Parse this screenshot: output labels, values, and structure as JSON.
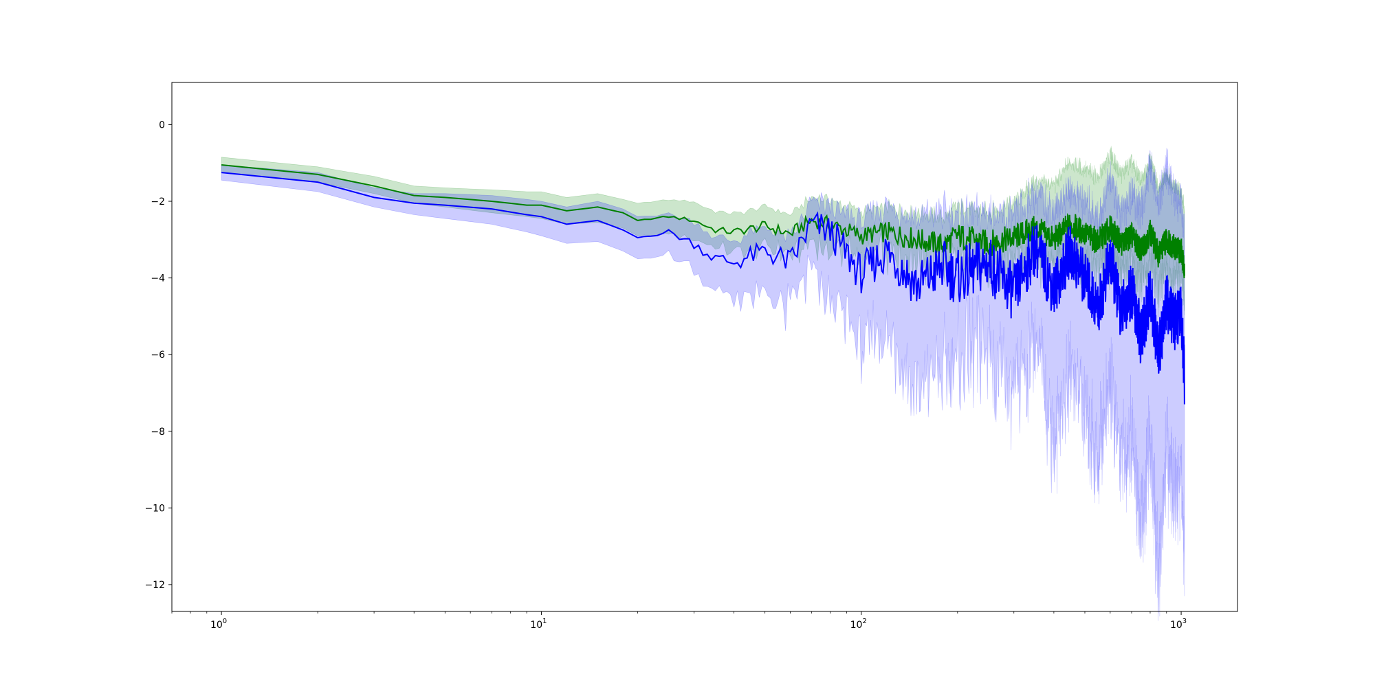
{
  "chart_data": {
    "type": "line",
    "title": "",
    "xlabel": "",
    "ylabel": "",
    "xscale": "log",
    "xlim": [
      0.7,
      1500
    ],
    "ylim": [
      -12.7,
      1.1
    ],
    "grid": false,
    "x_ticks": [
      {
        "value": 1,
        "base": "10",
        "exp": "0"
      },
      {
        "value": 10,
        "base": "10",
        "exp": "1"
      },
      {
        "value": 100,
        "base": "10",
        "exp": "2"
      },
      {
        "value": 1000,
        "base": "10",
        "exp": "3"
      }
    ],
    "y_ticks": [
      {
        "value": 0,
        "label": "0"
      },
      {
        "value": -2,
        "label": "−2"
      },
      {
        "value": -4,
        "label": "−4"
      },
      {
        "value": -6,
        "label": "−6"
      },
      {
        "value": -8,
        "label": "−8"
      },
      {
        "value": -10,
        "label": "−10"
      },
      {
        "value": -12,
        "label": "−12"
      }
    ],
    "series": [
      {
        "color": "#008000",
        "band_color": "#008000",
        "band_opacity": 0.2,
        "x": [
          1,
          2,
          3,
          4,
          5,
          7,
          9,
          10,
          12,
          15,
          18,
          20,
          25,
          30,
          35,
          40,
          50,
          60,
          70,
          80,
          100,
          120,
          150,
          180,
          200,
          250,
          300,
          350,
          400,
          450,
          500,
          550,
          600,
          650,
          700,
          750,
          800,
          850,
          900,
          950,
          1000,
          1024
        ],
        "y": [
          -1.05,
          -1.3,
          -1.6,
          -1.85,
          -1.9,
          -2.0,
          -2.1,
          -2.1,
          -2.25,
          -2.15,
          -2.3,
          -2.5,
          -2.4,
          -2.5,
          -2.75,
          -2.8,
          -2.65,
          -2.85,
          -2.5,
          -2.6,
          -2.9,
          -2.8,
          -3.0,
          -3.15,
          -2.9,
          -3.1,
          -2.95,
          -2.7,
          -3.0,
          -2.6,
          -2.85,
          -3.05,
          -2.7,
          -3.1,
          -2.9,
          -3.3,
          -2.8,
          -3.4,
          -3.0,
          -3.2,
          -3.3,
          -3.7
        ],
        "lower": [
          -1.25,
          -1.5,
          -1.8,
          -2.05,
          -2.15,
          -2.3,
          -2.4,
          -2.45,
          -2.6,
          -2.55,
          -2.7,
          -2.9,
          -2.85,
          -2.95,
          -3.2,
          -3.3,
          -3.2,
          -3.4,
          -3.1,
          -3.2,
          -3.45,
          -3.4,
          -3.55,
          -3.7,
          -3.5,
          -3.7,
          -3.6,
          -3.4,
          -3.7,
          -3.3,
          -3.6,
          -3.8,
          -3.5,
          -3.9,
          -3.7,
          -4.1,
          -3.6,
          -4.2,
          -3.8,
          -4.0,
          -4.0,
          -4.3
        ],
        "upper": [
          -0.85,
          -1.1,
          -1.35,
          -1.6,
          -1.65,
          -1.7,
          -1.75,
          -1.75,
          -1.9,
          -1.8,
          -1.95,
          -2.05,
          -1.95,
          -2.0,
          -2.25,
          -2.3,
          -2.1,
          -2.3,
          -1.85,
          -1.9,
          -2.2,
          -2.1,
          -2.2,
          -2.35,
          -2.05,
          -2.2,
          -1.95,
          -1.4,
          -1.5,
          -0.9,
          -1.1,
          -1.3,
          -0.7,
          -1.2,
          -0.9,
          -1.4,
          -0.8,
          -1.6,
          -1.2,
          -1.5,
          -1.7,
          -2.0
        ]
      },
      {
        "color": "#0000ff",
        "band_color": "#0000ff",
        "band_opacity": 0.2,
        "x": [
          1,
          2,
          3,
          4,
          5,
          7,
          9,
          10,
          12,
          15,
          18,
          20,
          25,
          30,
          35,
          40,
          50,
          60,
          70,
          80,
          100,
          120,
          150,
          180,
          200,
          250,
          300,
          350,
          400,
          450,
          500,
          550,
          600,
          650,
          700,
          750,
          800,
          850,
          900,
          950,
          1000,
          1024
        ],
        "y": [
          -1.25,
          -1.5,
          -1.9,
          -2.05,
          -2.1,
          -2.2,
          -2.35,
          -2.4,
          -2.6,
          -2.5,
          -2.75,
          -2.95,
          -2.8,
          -3.1,
          -3.5,
          -3.6,
          -3.3,
          -3.6,
          -2.6,
          -2.8,
          -3.9,
          -3.3,
          -4.2,
          -3.7,
          -4.0,
          -3.6,
          -4.4,
          -3.2,
          -4.3,
          -3.3,
          -4.0,
          -4.8,
          -3.5,
          -4.9,
          -4.3,
          -5.6,
          -4.4,
          -6.0,
          -4.6,
          -5.2,
          -4.9,
          -6.6
        ],
        "lower": [
          -1.45,
          -1.75,
          -2.15,
          -2.35,
          -2.45,
          -2.6,
          -2.8,
          -2.9,
          -3.1,
          -3.05,
          -3.3,
          -3.5,
          -3.4,
          -3.8,
          -4.3,
          -4.5,
          -4.6,
          -4.8,
          -3.8,
          -4.5,
          -5.8,
          -5.5,
          -6.9,
          -6.5,
          -6.2,
          -5.8,
          -7.3,
          -5.5,
          -8.5,
          -6.2,
          -7.4,
          -8.8,
          -6.6,
          -9.0,
          -8.0,
          -10.8,
          -8.2,
          -12.0,
          -8.5,
          -10.0,
          -9.2,
          -11.4
        ],
        "upper": [
          -1.05,
          -1.25,
          -1.65,
          -1.8,
          -1.8,
          -1.85,
          -1.95,
          -2.0,
          -2.15,
          -2.0,
          -2.2,
          -2.4,
          -2.3,
          -2.5,
          -2.9,
          -3.0,
          -2.6,
          -2.9,
          -1.9,
          -2.0,
          -2.4,
          -2.0,
          -2.3,
          -2.1,
          -2.2,
          -2.1,
          -2.3,
          -1.6,
          -2.1,
          -1.5,
          -1.8,
          -2.3,
          -1.2,
          -2.2,
          -1.6,
          -2.1,
          -0.8,
          -1.9,
          -0.9,
          -1.7,
          -1.8,
          -2.6
        ]
      }
    ]
  }
}
